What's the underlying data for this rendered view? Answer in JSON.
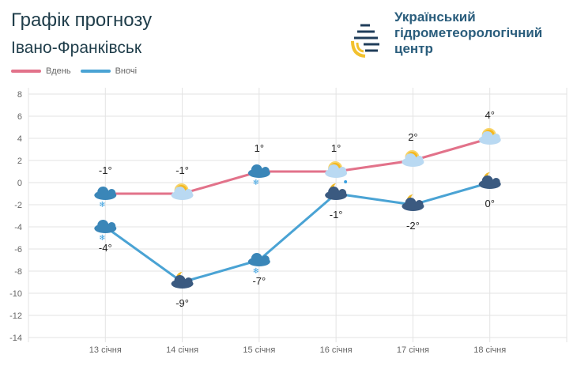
{
  "header": {
    "title": "Графік прогнозу",
    "city": "Івано-Франківськ",
    "org_lines": [
      "Український",
      "гідрометеорологічний",
      "центр"
    ]
  },
  "colors": {
    "day": "#e2728a",
    "night": "#4aa3d4",
    "grid": "#e3e3e3",
    "text": "#666666"
  },
  "chart_data": {
    "type": "line",
    "title": "Графік прогнозу",
    "categories": [
      "13 січня",
      "14 січня",
      "15 січня",
      "16 січня",
      "17 січня",
      "18 січня"
    ],
    "ylim": [
      -14,
      8
    ],
    "yticks": [
      8,
      6,
      4,
      2,
      0,
      -2,
      -4,
      -6,
      -8,
      -10,
      -12,
      -14
    ],
    "grid": true,
    "legend_position": "top-left",
    "series": [
      {
        "name": "Вдень",
        "values": [
          -1,
          -1,
          1,
          1,
          2,
          4
        ],
        "labels": [
          "-1°",
          "-1°",
          "1°",
          "1°",
          "2°",
          "4°"
        ],
        "icons": [
          "cloud-snow-icon",
          "sun-cloud-icon",
          "cloud-snow-icon",
          "sun-cloud-rain-icon",
          "sun-cloud-icon",
          "sun-cloud-icon"
        ]
      },
      {
        "name": "Вночі",
        "values": [
          -4,
          -9,
          -7,
          -1,
          -2,
          0
        ],
        "labels": [
          "-4°",
          "-9°",
          "-7°",
          "-1°",
          "-2°",
          "0°"
        ],
        "icons": [
          "cloud-snow-icon",
          "moon-cloud-icon",
          "cloud-snow-icon",
          "moon-cloud-icon",
          "moon-cloud-icon",
          "moon-cloud-icon"
        ]
      }
    ]
  }
}
